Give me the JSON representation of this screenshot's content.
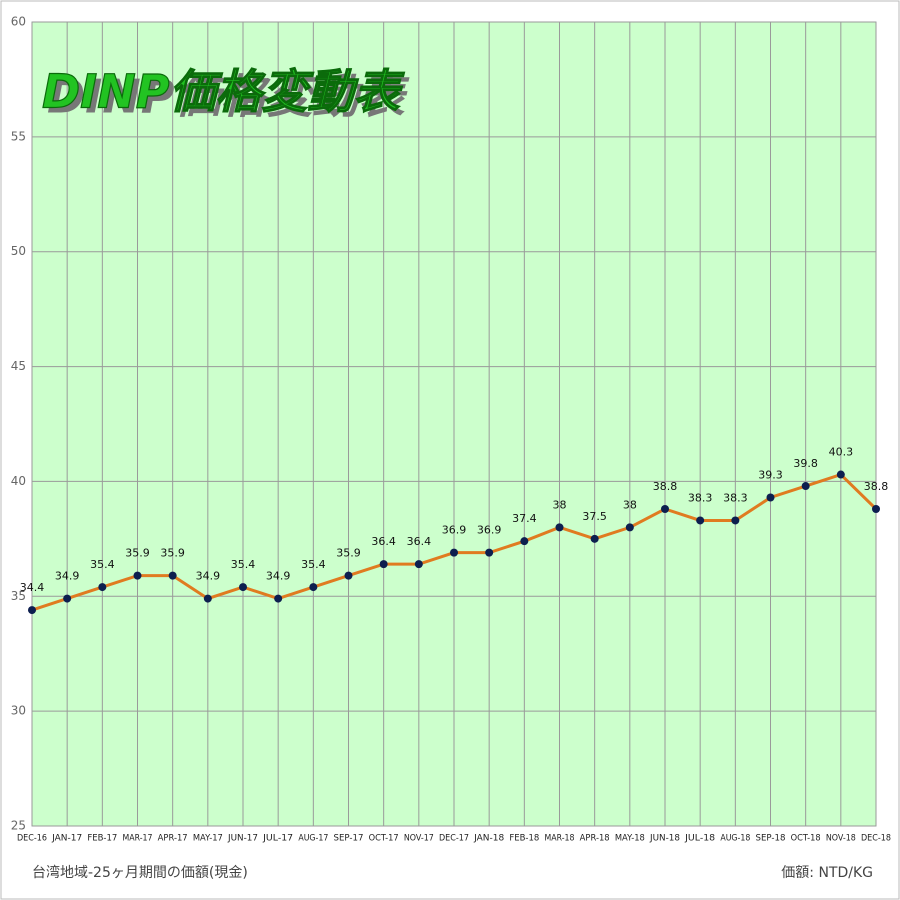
{
  "chart_data": {
    "type": "line",
    "title": "DINP価格変動表",
    "footnote_left": "台湾地域-25ヶ月期間の価額(現金)",
    "footnote_right": "価額: NTD/KG",
    "categories": [
      "DEC-16",
      "JAN-17",
      "FEB-17",
      "MAR-17",
      "APR-17",
      "MAY-17",
      "JUN-17",
      "JUL-17",
      "AUG-17",
      "SEP-17",
      "OCT-17",
      "NOV-17",
      "DEC-17",
      "JAN-18",
      "FEB-18",
      "MAR-18",
      "APR-18",
      "MAY-18",
      "JUN-18",
      "JUL-18",
      "AUG-18",
      "SEP-18",
      "OCT-18",
      "NOV-18",
      "DEC-18"
    ],
    "series": [
      {
        "color": "#e07b20",
        "marker_color": "#0d1f4f",
        "values": [
          34.4,
          34.9,
          35.4,
          35.9,
          35.9,
          34.9,
          35.4,
          34.9,
          35.4,
          35.9,
          36.4,
          36.4,
          36.9,
          36.9,
          37.4,
          38,
          37.5,
          38,
          38.8,
          38.3,
          38.3,
          39.3,
          39.8,
          40.3,
          38.8
        ]
      }
    ],
    "ylim": [
      25,
      60
    ],
    "yticks": [
      25,
      30,
      35,
      40,
      45,
      50,
      55,
      60
    ],
    "grid": true,
    "background": "#ccffcc"
  }
}
